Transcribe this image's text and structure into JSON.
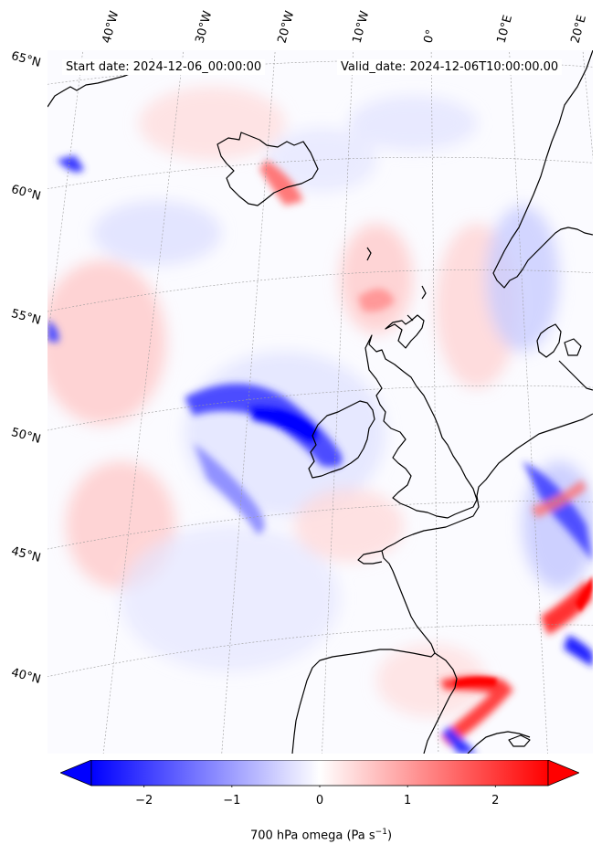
{
  "header": {
    "start_date": "Start date: 2024-12-06_00:00:00",
    "valid_date": "Valid_date: 2024-12-06T10:00:00.00"
  },
  "axes": {
    "lon_ticks": [
      "40°W",
      "30°W",
      "20°W",
      "10°W",
      "0°",
      "10°E",
      "20°E"
    ],
    "lat_ticks": [
      "65°N",
      "60°N",
      "55°N",
      "50°N",
      "45°N",
      "40°N"
    ]
  },
  "colorbar": {
    "ticks": [
      "−2",
      "−1",
      "0",
      "1",
      "2"
    ],
    "tick_values": [
      -2,
      -1,
      0,
      1,
      2
    ],
    "range": [
      -2.6,
      2.6
    ],
    "title": "700 hPa omega (Pa s",
    "title_sup": "−1",
    "title_end": ")",
    "colors": {
      "low": "#0000ff",
      "mid": "#ffffff",
      "high": "#ff0000"
    }
  },
  "map": {
    "projection": "polar stereographic",
    "field": "700 hPa omega",
    "coastline_color": "#000000",
    "gridline_color": "#9a9a9a"
  }
}
